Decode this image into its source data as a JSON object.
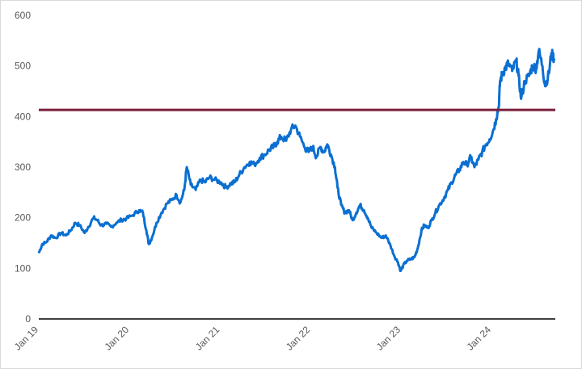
{
  "chart_data": {
    "type": "line",
    "title": "",
    "xlabel": "",
    "ylabel": "",
    "ylim": [
      0,
      600
    ],
    "y_ticks": [
      "0",
      "100",
      "200",
      "300",
      "400",
      "500",
      "600"
    ],
    "y_tick_values": [
      0,
      100,
      200,
      300,
      400,
      500,
      600
    ],
    "x_ticks": [
      "Jan 19",
      "Jan 20",
      "Jan 21",
      "Jan 22",
      "Jan 23",
      "Jan 24"
    ],
    "x_tick_dates": [
      "2019-01-01",
      "2020-01-01",
      "2021-01-01",
      "2022-01-01",
      "2023-01-01",
      "2024-01-01"
    ],
    "xlim": [
      "2019-01-01",
      "2024-09-15"
    ],
    "grid": false,
    "legend": "none",
    "reference_line": {
      "value": 413,
      "color": "#7B1F3A"
    },
    "series": [
      {
        "color": "#0A6FD1",
        "points": [
          [
            "2019-01-01",
            130
          ],
          [
            "2019-01-15",
            148
          ],
          [
            "2019-02-01",
            152
          ],
          [
            "2019-02-20",
            165
          ],
          [
            "2019-03-10",
            160
          ],
          [
            "2019-04-01",
            170
          ],
          [
            "2019-04-20",
            165
          ],
          [
            "2019-05-10",
            175
          ],
          [
            "2019-05-28",
            190
          ],
          [
            "2019-06-15",
            185
          ],
          [
            "2019-07-05",
            170
          ],
          [
            "2019-07-20",
            182
          ],
          [
            "2019-08-10",
            200
          ],
          [
            "2019-08-25",
            195
          ],
          [
            "2019-09-10",
            185
          ],
          [
            "2019-10-01",
            188
          ],
          [
            "2019-10-20",
            182
          ],
          [
            "2019-11-10",
            190
          ],
          [
            "2019-12-01",
            196
          ],
          [
            "2019-12-20",
            198
          ],
          [
            "2020-01-15",
            205
          ],
          [
            "2020-02-10",
            215
          ],
          [
            "2020-02-25",
            210
          ],
          [
            "2020-03-10",
            175
          ],
          [
            "2020-03-20",
            148
          ],
          [
            "2020-04-01",
            160
          ],
          [
            "2020-04-20",
            190
          ],
          [
            "2020-05-10",
            210
          ],
          [
            "2020-06-01",
            228
          ],
          [
            "2020-06-20",
            235
          ],
          [
            "2020-07-10",
            245
          ],
          [
            "2020-07-25",
            230
          ],
          [
            "2020-08-10",
            255
          ],
          [
            "2020-08-20",
            300
          ],
          [
            "2020-09-05",
            265
          ],
          [
            "2020-09-25",
            255
          ],
          [
            "2020-10-15",
            275
          ],
          [
            "2020-11-01",
            270
          ],
          [
            "2020-11-20",
            280
          ],
          [
            "2020-12-10",
            275
          ],
          [
            "2021-01-05",
            270
          ],
          [
            "2021-01-25",
            260
          ],
          [
            "2021-02-15",
            268
          ],
          [
            "2021-03-01",
            270
          ],
          [
            "2021-03-20",
            285
          ],
          [
            "2021-04-10",
            300
          ],
          [
            "2021-05-01",
            310
          ],
          [
            "2021-05-20",
            305
          ],
          [
            "2021-06-10",
            318
          ],
          [
            "2021-07-01",
            325
          ],
          [
            "2021-07-20",
            335
          ],
          [
            "2021-08-05",
            340
          ],
          [
            "2021-08-20",
            350
          ],
          [
            "2021-09-05",
            360
          ],
          [
            "2021-09-25",
            352
          ],
          [
            "2021-10-15",
            375
          ],
          [
            "2021-11-01",
            382
          ],
          [
            "2021-11-20",
            360
          ],
          [
            "2021-12-10",
            338
          ],
          [
            "2021-12-25",
            330
          ],
          [
            "2022-01-10",
            340
          ],
          [
            "2022-01-25",
            320
          ],
          [
            "2022-02-10",
            340
          ],
          [
            "2022-02-25",
            330
          ],
          [
            "2022-03-10",
            345
          ],
          [
            "2022-03-25",
            325
          ],
          [
            "2022-04-10",
            300
          ],
          [
            "2022-04-20",
            260
          ],
          [
            "2022-05-05",
            225
          ],
          [
            "2022-05-20",
            210
          ],
          [
            "2022-06-05",
            215
          ],
          [
            "2022-06-20",
            195
          ],
          [
            "2022-07-05",
            210
          ],
          [
            "2022-07-20",
            225
          ],
          [
            "2022-08-05",
            215
          ],
          [
            "2022-08-20",
            200
          ],
          [
            "2022-09-05",
            180
          ],
          [
            "2022-09-25",
            170
          ],
          [
            "2022-10-15",
            160
          ],
          [
            "2022-11-01",
            165
          ],
          [
            "2022-11-20",
            145
          ],
          [
            "2022-12-05",
            125
          ],
          [
            "2022-12-20",
            112
          ],
          [
            "2022-12-31",
            95
          ],
          [
            "2023-01-10",
            105
          ],
          [
            "2023-01-25",
            115
          ],
          [
            "2023-02-10",
            118
          ],
          [
            "2023-02-25",
            122
          ],
          [
            "2023-03-10",
            140
          ],
          [
            "2023-03-25",
            175
          ],
          [
            "2023-04-05",
            185
          ],
          [
            "2023-04-20",
            180
          ],
          [
            "2023-05-05",
            195
          ],
          [
            "2023-05-20",
            210
          ],
          [
            "2023-06-05",
            225
          ],
          [
            "2023-06-25",
            240
          ],
          [
            "2023-07-10",
            255
          ],
          [
            "2023-07-25",
            270
          ],
          [
            "2023-08-10",
            285
          ],
          [
            "2023-08-25",
            295
          ],
          [
            "2023-09-10",
            310
          ],
          [
            "2023-09-25",
            305
          ],
          [
            "2023-10-10",
            320
          ],
          [
            "2023-10-25",
            300
          ],
          [
            "2023-11-10",
            315
          ],
          [
            "2023-11-25",
            330
          ],
          [
            "2023-12-10",
            345
          ],
          [
            "2023-12-25",
            355
          ],
          [
            "2024-01-10",
            375
          ],
          [
            "2024-01-20",
            395
          ],
          [
            "2024-01-31",
            420
          ],
          [
            "2024-02-05",
            470
          ],
          [
            "2024-02-15",
            485
          ],
          [
            "2024-02-25",
            495
          ],
          [
            "2024-03-10",
            505
          ],
          [
            "2024-03-25",
            490
          ],
          [
            "2024-04-10",
            510
          ],
          [
            "2024-04-20",
            480
          ],
          [
            "2024-04-30",
            435
          ],
          [
            "2024-05-15",
            470
          ],
          [
            "2024-05-31",
            480
          ],
          [
            "2024-06-15",
            500
          ],
          [
            "2024-06-30",
            495
          ],
          [
            "2024-07-10",
            530
          ],
          [
            "2024-07-25",
            500
          ],
          [
            "2024-08-05",
            460
          ],
          [
            "2024-08-20",
            485
          ],
          [
            "2024-08-30",
            525
          ],
          [
            "2024-09-10",
            515
          ]
        ]
      }
    ]
  }
}
